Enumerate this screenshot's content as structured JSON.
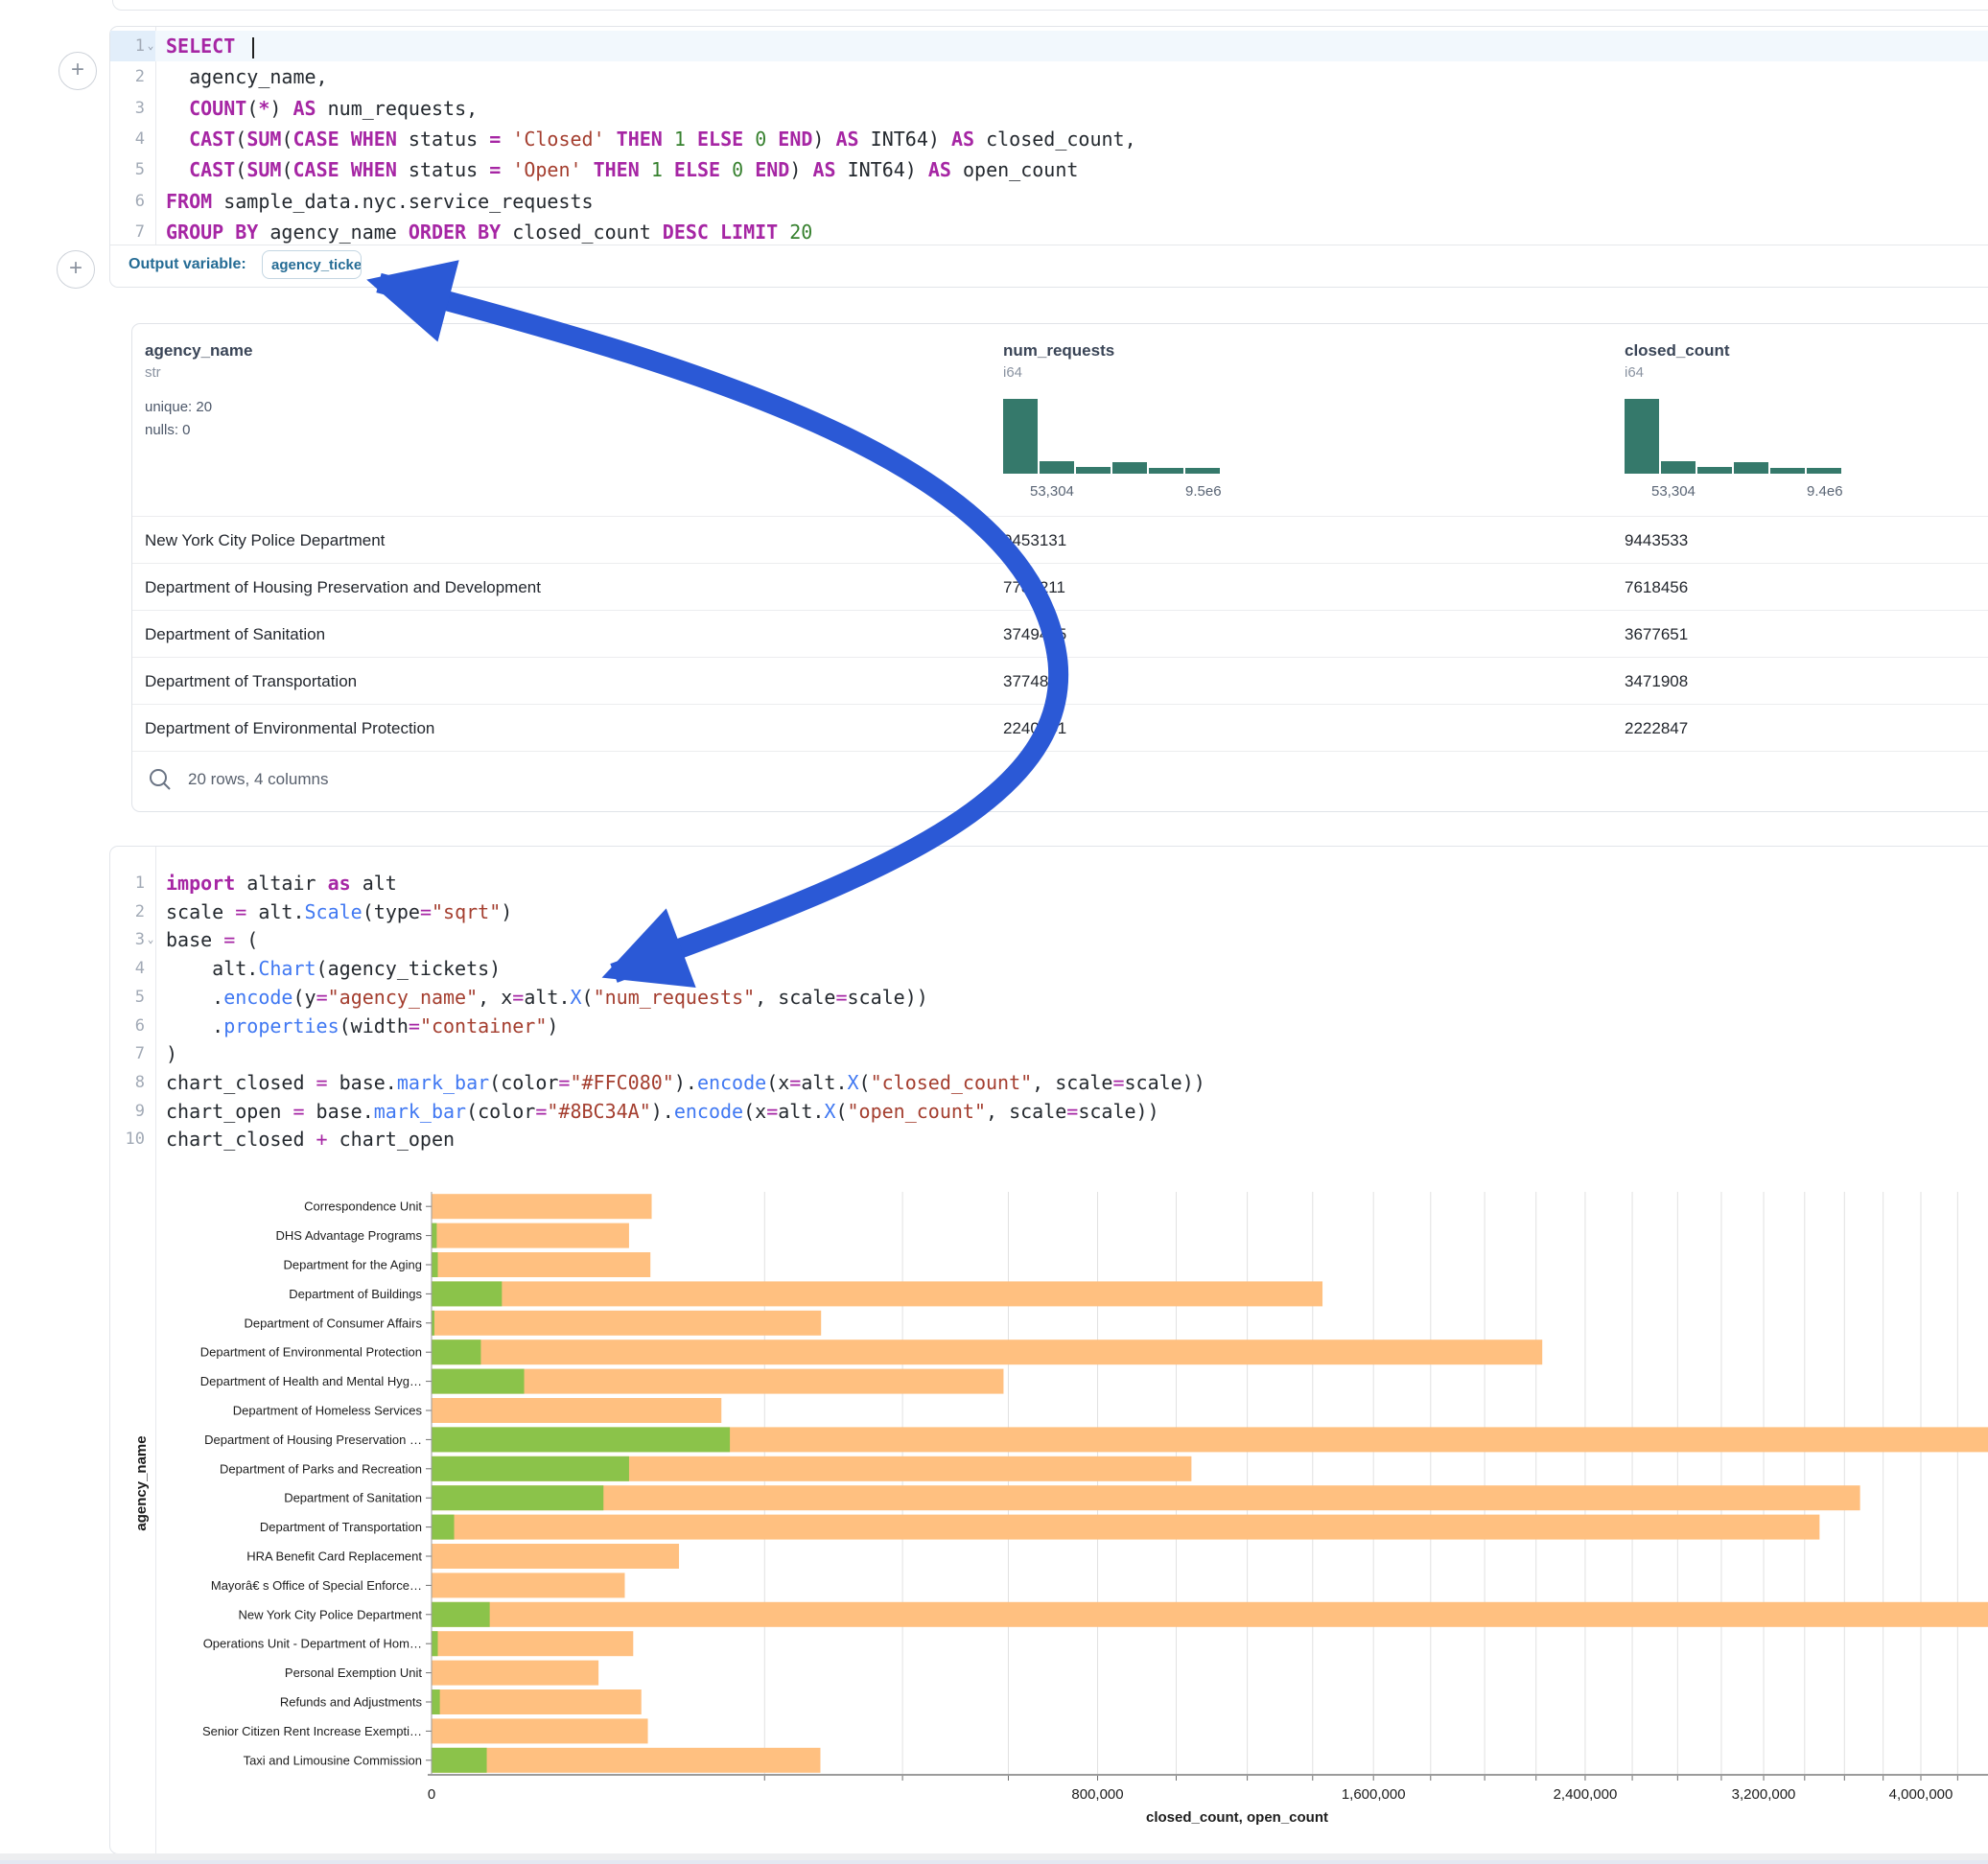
{
  "cells": {
    "sql": {
      "active_line": 1,
      "fold_line": 1,
      "lines": [
        {
          "tokens": [
            [
              "k",
              "SELECT"
            ],
            [
              "t",
              " "
            ],
            [
              "caret",
              ""
            ]
          ]
        },
        {
          "tokens": [
            [
              "t",
              "  agency_name,"
            ]
          ]
        },
        {
          "tokens": [
            [
              "t",
              "  "
            ],
            [
              "k",
              "COUNT"
            ],
            [
              "t",
              "("
            ],
            [
              "k",
              "*"
            ],
            [
              "t",
              ") "
            ],
            [
              "k",
              "AS"
            ],
            [
              "t",
              " num_requests,"
            ]
          ]
        },
        {
          "tokens": [
            [
              "t",
              "  "
            ],
            [
              "k",
              "CAST"
            ],
            [
              "t",
              "("
            ],
            [
              "k",
              "SUM"
            ],
            [
              "t",
              "("
            ],
            [
              "k",
              "CASE"
            ],
            [
              "t",
              " "
            ],
            [
              "k",
              "WHEN"
            ],
            [
              "t",
              " status "
            ],
            [
              "k",
              "="
            ],
            [
              "t",
              " "
            ],
            [
              "s",
              "'Closed'"
            ],
            [
              "t",
              " "
            ],
            [
              "k",
              "THEN"
            ],
            [
              "t",
              " "
            ],
            [
              "n",
              "1"
            ],
            [
              "t",
              " "
            ],
            [
              "k",
              "ELSE"
            ],
            [
              "t",
              " "
            ],
            [
              "n",
              "0"
            ],
            [
              "t",
              " "
            ],
            [
              "k",
              "END"
            ],
            [
              "t",
              ") "
            ],
            [
              "k",
              "AS"
            ],
            [
              "t",
              " INT64) "
            ],
            [
              "k",
              "AS"
            ],
            [
              "t",
              " closed_count,"
            ]
          ]
        },
        {
          "tokens": [
            [
              "t",
              "  "
            ],
            [
              "k",
              "CAST"
            ],
            [
              "t",
              "("
            ],
            [
              "k",
              "SUM"
            ],
            [
              "t",
              "("
            ],
            [
              "k",
              "CASE"
            ],
            [
              "t",
              " "
            ],
            [
              "k",
              "WHEN"
            ],
            [
              "t",
              " status "
            ],
            [
              "k",
              "="
            ],
            [
              "t",
              " "
            ],
            [
              "s",
              "'Open'"
            ],
            [
              "t",
              " "
            ],
            [
              "k",
              "THEN"
            ],
            [
              "t",
              " "
            ],
            [
              "n",
              "1"
            ],
            [
              "t",
              " "
            ],
            [
              "k",
              "ELSE"
            ],
            [
              "t",
              " "
            ],
            [
              "n",
              "0"
            ],
            [
              "t",
              " "
            ],
            [
              "k",
              "END"
            ],
            [
              "t",
              ") "
            ],
            [
              "k",
              "AS"
            ],
            [
              "t",
              " INT64) "
            ],
            [
              "k",
              "AS"
            ],
            [
              "t",
              " open_count"
            ]
          ]
        },
        {
          "tokens": [
            [
              "k",
              "FROM"
            ],
            [
              "t",
              " sample_data.nyc.service_requests"
            ]
          ]
        },
        {
          "tokens": [
            [
              "k",
              "GROUP BY"
            ],
            [
              "t",
              " agency_name "
            ],
            [
              "k",
              "ORDER BY"
            ],
            [
              "t",
              " closed_count "
            ],
            [
              "k",
              "DESC"
            ],
            [
              "t",
              " "
            ],
            [
              "k",
              "LIMIT"
            ],
            [
              "t",
              " "
            ],
            [
              "n",
              "20"
            ]
          ]
        }
      ],
      "output_label": "Output variable:",
      "output_chip": "agency_tickets"
    },
    "python": {
      "fold_line": 3,
      "lines": [
        {
          "tokens": [
            [
              "k",
              "import"
            ],
            [
              "t",
              " altair "
            ],
            [
              "k",
              "as"
            ],
            [
              "t",
              " alt"
            ]
          ]
        },
        {
          "tokens": [
            [
              "t",
              "scale "
            ],
            [
              "o",
              "="
            ],
            [
              "t",
              " alt."
            ],
            [
              "f",
              "Scale"
            ],
            [
              "t",
              "(type"
            ],
            [
              "o",
              "="
            ],
            [
              "s",
              "\"sqrt\""
            ],
            [
              "t",
              ")"
            ]
          ]
        },
        {
          "tokens": [
            [
              "t",
              "base "
            ],
            [
              "o",
              "="
            ],
            [
              "t",
              " ("
            ]
          ]
        },
        {
          "tokens": [
            [
              "t",
              "    alt."
            ],
            [
              "f",
              "Chart"
            ],
            [
              "t",
              "(agency_tickets)"
            ]
          ]
        },
        {
          "tokens": [
            [
              "t",
              "    ."
            ],
            [
              "f",
              "encode"
            ],
            [
              "t",
              "(y"
            ],
            [
              "o",
              "="
            ],
            [
              "s",
              "\"agency_name\""
            ],
            [
              "t",
              ", x"
            ],
            [
              "o",
              "="
            ],
            [
              "t",
              "alt."
            ],
            [
              "f",
              "X"
            ],
            [
              "t",
              "("
            ],
            [
              "s",
              "\"num_requests\""
            ],
            [
              "t",
              ", scale"
            ],
            [
              "o",
              "="
            ],
            [
              "t",
              "scale))"
            ]
          ]
        },
        {
          "tokens": [
            [
              "t",
              "    ."
            ],
            [
              "f",
              "properties"
            ],
            [
              "t",
              "(width"
            ],
            [
              "o",
              "="
            ],
            [
              "s",
              "\"container\""
            ],
            [
              "t",
              ")"
            ]
          ]
        },
        {
          "tokens": [
            [
              "t",
              ")"
            ]
          ]
        },
        {
          "tokens": [
            [
              "t",
              "chart_closed "
            ],
            [
              "o",
              "="
            ],
            [
              "t",
              " base."
            ],
            [
              "f",
              "mark_bar"
            ],
            [
              "t",
              "(color"
            ],
            [
              "o",
              "="
            ],
            [
              "s",
              "\"#FFC080\""
            ],
            [
              "t",
              ")."
            ],
            [
              "f",
              "encode"
            ],
            [
              "t",
              "(x"
            ],
            [
              "o",
              "="
            ],
            [
              "t",
              "alt."
            ],
            [
              "f",
              "X"
            ],
            [
              "t",
              "("
            ],
            [
              "s",
              "\"closed_count\""
            ],
            [
              "t",
              ", scale"
            ],
            [
              "o",
              "="
            ],
            [
              "t",
              "scale))"
            ]
          ]
        },
        {
          "tokens": [
            [
              "t",
              "chart_open "
            ],
            [
              "o",
              "="
            ],
            [
              "t",
              " base."
            ],
            [
              "f",
              "mark_bar"
            ],
            [
              "t",
              "(color"
            ],
            [
              "o",
              "="
            ],
            [
              "s",
              "\"#8BC34A\""
            ],
            [
              "t",
              ")."
            ],
            [
              "f",
              "encode"
            ],
            [
              "t",
              "(x"
            ],
            [
              "o",
              "="
            ],
            [
              "t",
              "alt."
            ],
            [
              "f",
              "X"
            ],
            [
              "t",
              "("
            ],
            [
              "s",
              "\"open_count\""
            ],
            [
              "t",
              ", scale"
            ],
            [
              "o",
              "="
            ],
            [
              "t",
              "scale))"
            ]
          ]
        },
        {
          "tokens": [
            [
              "t",
              "chart_closed "
            ],
            [
              "o",
              "+"
            ],
            [
              "t",
              " chart_open"
            ]
          ]
        }
      ]
    }
  },
  "table": {
    "columns": [
      {
        "name": "agency_name",
        "type": "str",
        "stats": [
          "unique: 20",
          "nulls: 0"
        ]
      },
      {
        "name": "num_requests",
        "type": "i64",
        "hist": {
          "heights": [
            1,
            0.17,
            0.09,
            0.16,
            0.08,
            0.08
          ],
          "min_label": "53,304",
          "max_label": "9.5e6"
        }
      },
      {
        "name": "closed_count",
        "type": "i64",
        "hist": {
          "heights": [
            1,
            0.17,
            0.09,
            0.16,
            0.08,
            0.08
          ],
          "min_label": "53,304",
          "max_label": "9.4e6"
        }
      }
    ],
    "rows": [
      [
        "New York City Police Department",
        "9453131",
        "9443533"
      ],
      [
        "Department of Housing Preservation and Development",
        "7782211",
        "7618456"
      ],
      [
        "Department of Sanitation",
        "3749485",
        "3677651"
      ],
      [
        "Department of Transportation",
        "3774892",
        "3471908"
      ],
      [
        "Department of Environmental Protection",
        "2240041",
        "2222847"
      ]
    ],
    "footer": "20 rows, 4 columns",
    "hist_color": "#35796b"
  },
  "chart_data": {
    "type": "bar",
    "orientation": "horizontal",
    "x_scale": "sqrt",
    "xlabel": "closed_count, open_count",
    "ylabel": "agency_name",
    "x_tick_values": [
      0,
      800000,
      1600000,
      2400000,
      3200000,
      4000000
    ],
    "x_tick_labels": [
      "0",
      "800,000",
      "1,600,000",
      "2,400,000",
      "3,200,000",
      "4,000,000"
    ],
    "grid_step": 200000,
    "x_grid_max": 4600000,
    "legend_position": "none",
    "grid": true,
    "categories": [
      "Correspondence Unit",
      "DHS Advantage Programs",
      "Department for the Aging",
      "Department of Buildings",
      "Department of Consumer Affairs",
      "Department of Environmental Protection",
      "Department of Health and Mental Hyg…",
      "Department of Homeless Services",
      "Department of Housing Preservation …",
      "Department of Parks and Recreation",
      "Department of Sanitation",
      "Department of Transportation",
      "HRA Benefit Card Replacement",
      "Mayorâ€ s Office of Special Enforce…",
      "New York City Police Department",
      "Operations Unit - Department of Hom…",
      "Personal Exemption Unit",
      "Refunds and Adjustments",
      "Senior Citizen Rent Increase Exempti…",
      "Taxi and Limousine Commission"
    ],
    "series": [
      {
        "name": "closed_count",
        "color": "#FFC080",
        "values": [
          87000,
          70000,
          86000,
          1430000,
          273000,
          2222847,
          589000,
          151000,
          7618456,
          1040000,
          3677651,
          3471908,
          110000,
          67000,
          9443533,
          73000,
          50000,
          79000,
          84000,
          272000
        ]
      },
      {
        "name": "open_count",
        "color": "#8BC34A",
        "values": [
          0,
          40,
          60,
          8800,
          10,
          4300,
          15300,
          0,
          160000,
          70000,
          53000,
          880,
          0,
          0,
          6000,
          60,
          0,
          110,
          0,
          5400
        ]
      }
    ]
  },
  "annotation_arrow": {
    "color": "#2b59d6"
  }
}
